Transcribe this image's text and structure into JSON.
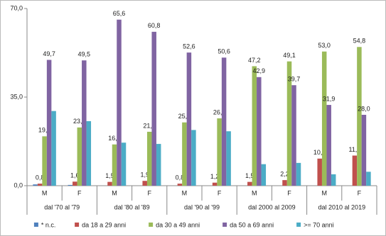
{
  "chart_data": {
    "type": "bar",
    "categories": [
      "M",
      "F",
      "M",
      "F",
      "M",
      "F",
      "M",
      "F",
      "M",
      "F"
    ],
    "groups": [
      "dal '70 al '79",
      "dal '80 al '89",
      "dal '90 al '99",
      "dal 2000 al 2009",
      "dal 2010 al 2019"
    ],
    "series": [
      {
        "name": "* n.c.",
        "color": "#4f81bd",
        "values": [
          0.5,
          0.3,
          0,
          0,
          0,
          0,
          0,
          0,
          0,
          0
        ]
      },
      {
        "name": "da 18 a 29 anni",
        "color": "#c0504d",
        "values": [
          0.8,
          1.6,
          1.5,
          1.9,
          0.8,
          1.2,
          1.5,
          2.2,
          10.7,
          11.9
        ],
        "value_labels": [
          "0,8",
          "1,6",
          "1,5",
          "1,9",
          "0,8",
          "1,2",
          "1,5",
          "2,2",
          "10,7",
          "11,9"
        ]
      },
      {
        "name": "da 30 a 49 anni",
        "color": "#9bbb59",
        "values": [
          19.5,
          23.0,
          16.3,
          21.3,
          25.0,
          26.6,
          47.2,
          49.1,
          53.0,
          54.8
        ],
        "value_labels": [
          "19,5",
          "23,0",
          "16,3",
          "21,3",
          "25,0",
          "26,6",
          "47,2",
          "49,1",
          "53,0",
          "54,8"
        ]
      },
      {
        "name": "da 50 a 69 anni",
        "color": "#8064a2",
        "values": [
          49.7,
          49.5,
          65.6,
          60.8,
          52.6,
          50.6,
          42.9,
          39.7,
          31.9,
          28.0
        ],
        "value_labels": [
          "49,7",
          "49,5",
          "65,6",
          "60,8",
          "52,6",
          "50,6",
          "42,9",
          "39,7",
          "31,9",
          "28,0"
        ]
      },
      {
        "name": ">= 70 anni",
        "color": "#4bacc6",
        "values": [
          29.5,
          25.5,
          17.0,
          16.5,
          22.0,
          21.5,
          8.5,
          9.0,
          4.5,
          5.5
        ]
      }
    ],
    "ylim": [
      0,
      70
    ],
    "yticks": [
      {
        "value": 0,
        "label": "0,0"
      },
      {
        "value": 35,
        "label": "35,0"
      },
      {
        "value": 70,
        "label": "70,0"
      }
    ],
    "legend": "bottom"
  }
}
